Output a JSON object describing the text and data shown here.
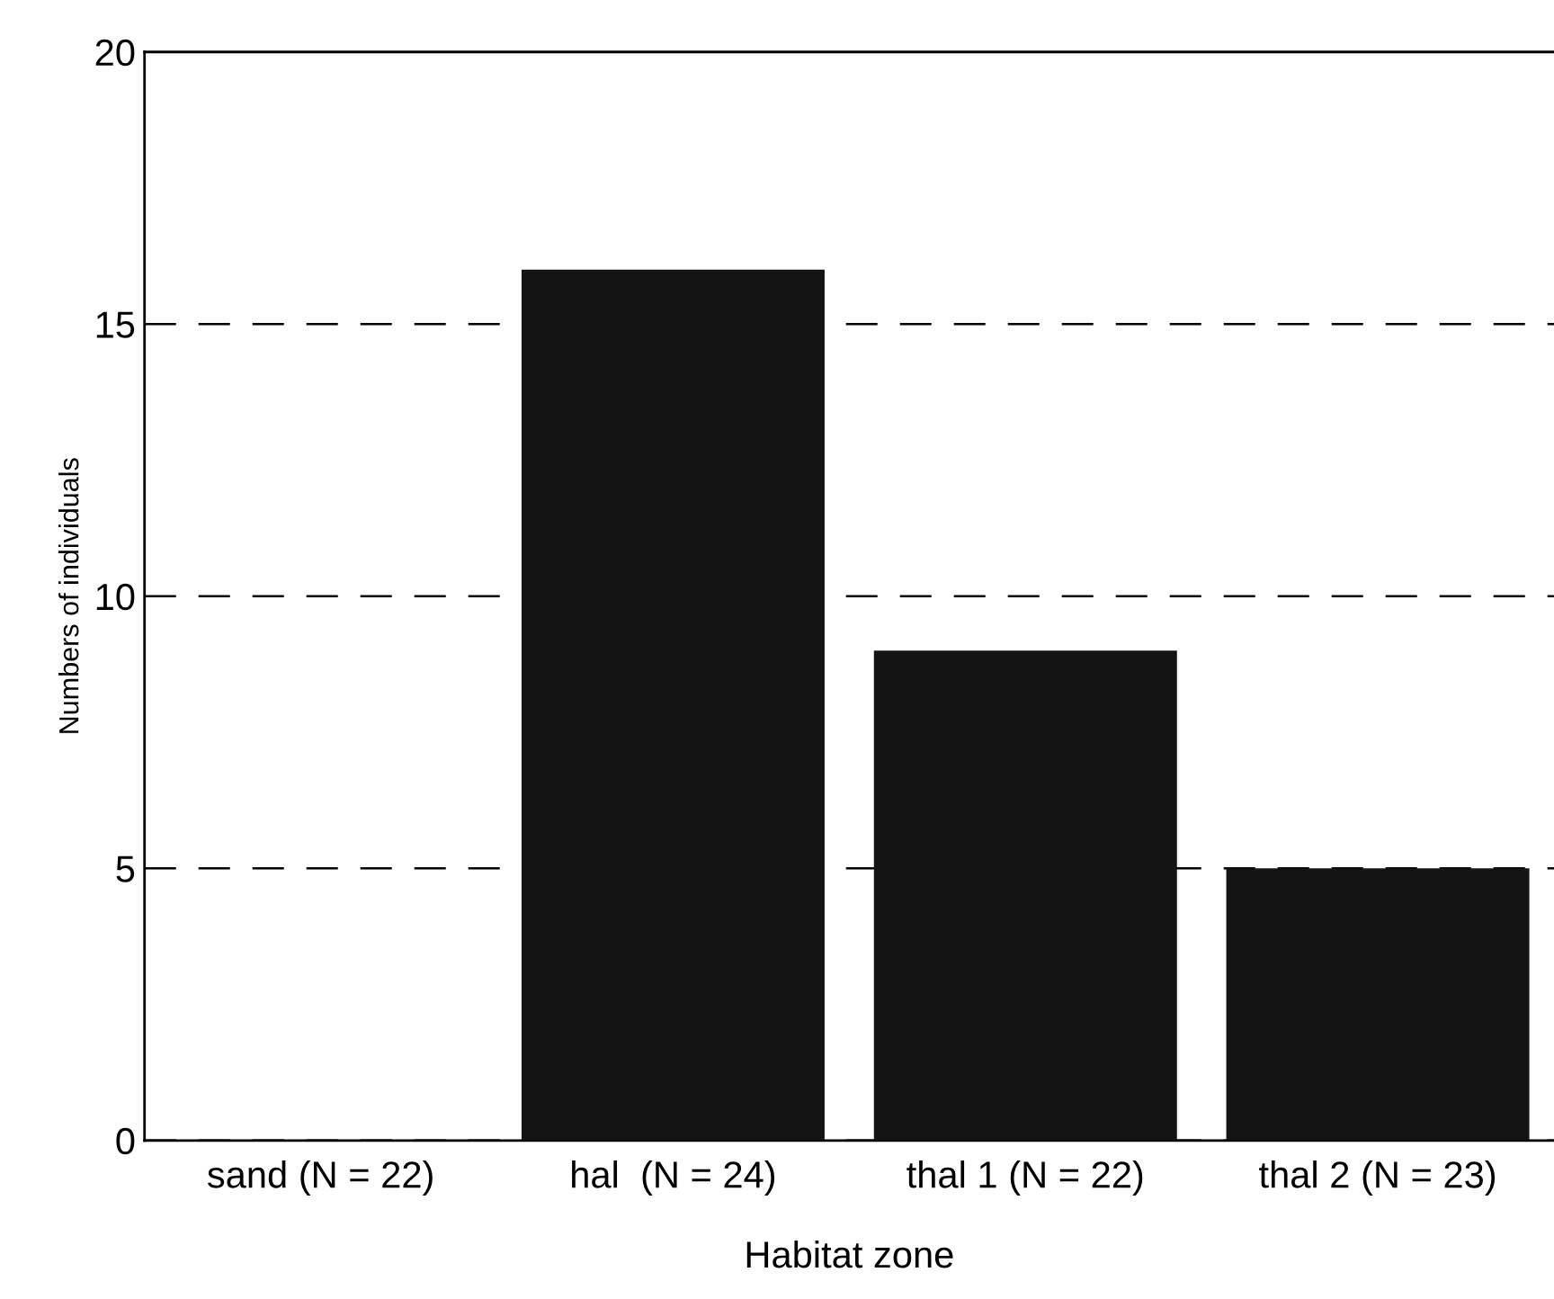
{
  "chart_data": {
    "type": "bar",
    "xlabel": "Habitat zone",
    "ylabel": "Numbers of individuals",
    "categories": [
      "sand (N = 22)",
      "hal  (N = 24)",
      "thal 1 (N = 22)",
      "thal 2 (N = 23)"
    ],
    "values": [
      0,
      16,
      9,
      5
    ],
    "color": "#141414",
    "ylim": [
      0,
      20
    ],
    "yticks": [
      0,
      5,
      10,
      15,
      20
    ],
    "grid": "y",
    "line_style": "dashed"
  }
}
